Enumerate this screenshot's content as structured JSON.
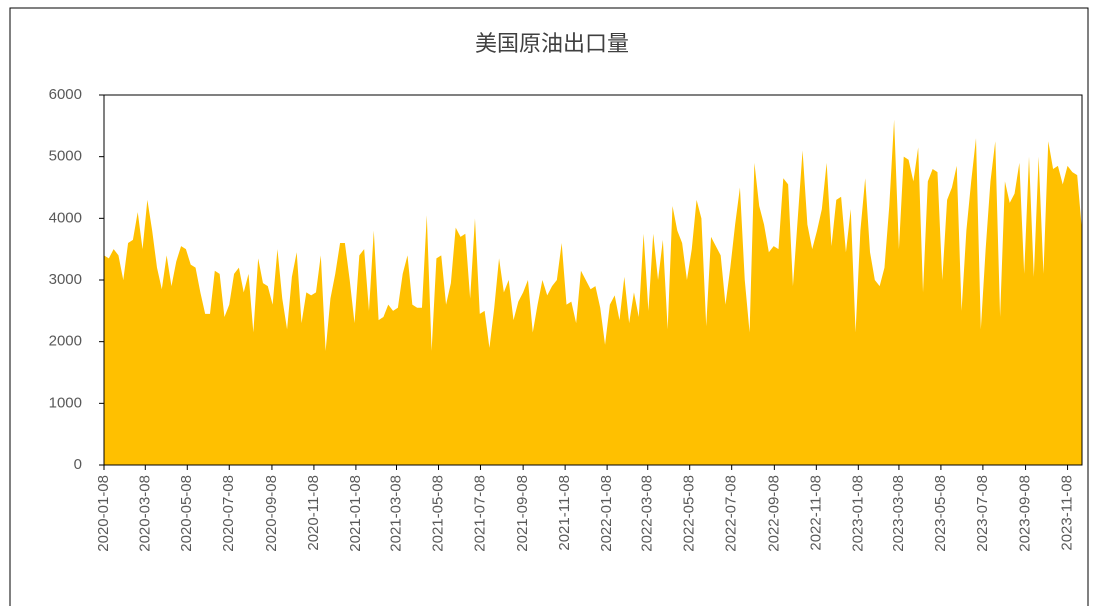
{
  "chart_data": {
    "type": "area",
    "title": "美国原油出口量",
    "color": "#ffc000",
    "ylim": [
      0,
      6000
    ],
    "yticks": [
      0,
      1000,
      2000,
      3000,
      4000,
      5000,
      6000
    ],
    "xticks": [
      "2020-01-08",
      "2020-03-08",
      "2020-05-08",
      "2020-07-08",
      "2020-09-08",
      "2020-11-08",
      "2021-01-08",
      "2021-03-08",
      "2021-05-08",
      "2021-07-08",
      "2021-09-08",
      "2021-11-08",
      "2022-01-08",
      "2022-03-08",
      "2022-05-08",
      "2022-07-08",
      "2022-09-08",
      "2022-11-08",
      "2023-01-08",
      "2023-03-08",
      "2023-05-08",
      "2023-07-08",
      "2023-09-08",
      "2023-11-08"
    ],
    "x": [
      "2020-01-08",
      "2020-01-15",
      "2020-01-22",
      "2020-01-29",
      "2020-02-05",
      "2020-02-12",
      "2020-02-19",
      "2020-02-26",
      "2020-03-04",
      "2020-03-11",
      "2020-03-18",
      "2020-03-25",
      "2020-04-01",
      "2020-04-08",
      "2020-04-15",
      "2020-04-22",
      "2020-04-29",
      "2020-05-06",
      "2020-05-13",
      "2020-05-20",
      "2020-05-27",
      "2020-06-03",
      "2020-06-10",
      "2020-06-17",
      "2020-06-24",
      "2020-07-01",
      "2020-07-08",
      "2020-07-15",
      "2020-07-22",
      "2020-07-29",
      "2020-08-05",
      "2020-08-12",
      "2020-08-19",
      "2020-08-26",
      "2020-09-02",
      "2020-09-09",
      "2020-09-16",
      "2020-09-23",
      "2020-09-30",
      "2020-10-07",
      "2020-10-14",
      "2020-10-21",
      "2020-10-28",
      "2020-11-04",
      "2020-11-11",
      "2020-11-18",
      "2020-11-25",
      "2020-12-02",
      "2020-12-09",
      "2020-12-16",
      "2020-12-23",
      "2020-12-30",
      "2021-01-06",
      "2021-01-13",
      "2021-01-20",
      "2021-01-27",
      "2021-02-03",
      "2021-02-10",
      "2021-02-17",
      "2021-02-24",
      "2021-03-03",
      "2021-03-10",
      "2021-03-17",
      "2021-03-24",
      "2021-03-31",
      "2021-04-07",
      "2021-04-14",
      "2021-04-21",
      "2021-04-28",
      "2021-05-05",
      "2021-05-12",
      "2021-05-19",
      "2021-05-26",
      "2021-06-02",
      "2021-06-09",
      "2021-06-16",
      "2021-06-23",
      "2021-06-30",
      "2021-07-07",
      "2021-07-14",
      "2021-07-21",
      "2021-07-28",
      "2021-08-04",
      "2021-08-11",
      "2021-08-18",
      "2021-08-25",
      "2021-09-01",
      "2021-09-08",
      "2021-09-15",
      "2021-09-22",
      "2021-09-29",
      "2021-10-06",
      "2021-10-13",
      "2021-10-20",
      "2021-10-27",
      "2021-11-03",
      "2021-11-10",
      "2021-11-17",
      "2021-11-24",
      "2021-12-01",
      "2021-12-08",
      "2021-12-15",
      "2021-12-22",
      "2021-12-29",
      "2022-01-05",
      "2022-01-12",
      "2022-01-19",
      "2022-01-26",
      "2022-02-02",
      "2022-02-09",
      "2022-02-16",
      "2022-02-23",
      "2022-03-02",
      "2022-03-09",
      "2022-03-16",
      "2022-03-23",
      "2022-03-30",
      "2022-04-06",
      "2022-04-13",
      "2022-04-20",
      "2022-04-27",
      "2022-05-04",
      "2022-05-11",
      "2022-05-18",
      "2022-05-25",
      "2022-06-01",
      "2022-06-08",
      "2022-06-15",
      "2022-06-22",
      "2022-06-29",
      "2022-07-06",
      "2022-07-13",
      "2022-07-20",
      "2022-07-27",
      "2022-08-03",
      "2022-08-10",
      "2022-08-17",
      "2022-08-24",
      "2022-08-31",
      "2022-09-07",
      "2022-09-14",
      "2022-09-21",
      "2022-09-28",
      "2022-10-05",
      "2022-10-12",
      "2022-10-19",
      "2022-10-26",
      "2022-11-02",
      "2022-11-09",
      "2022-11-16",
      "2022-11-23",
      "2022-11-30",
      "2022-12-07",
      "2022-12-14",
      "2022-12-21",
      "2022-12-28",
      "2023-01-04",
      "2023-01-11",
      "2023-01-18",
      "2023-01-25",
      "2023-02-01",
      "2023-02-08",
      "2023-02-15",
      "2023-02-22",
      "2023-03-01",
      "2023-03-08",
      "2023-03-15",
      "2023-03-22",
      "2023-03-29",
      "2023-04-05",
      "2023-04-12",
      "2023-04-19",
      "2023-04-26",
      "2023-05-03",
      "2023-05-10",
      "2023-05-17",
      "2023-05-24",
      "2023-05-31",
      "2023-06-07",
      "2023-06-14",
      "2023-06-21",
      "2023-06-28",
      "2023-07-05",
      "2023-07-12",
      "2023-07-19",
      "2023-07-26",
      "2023-08-02",
      "2023-08-09",
      "2023-08-16",
      "2023-08-23",
      "2023-08-30",
      "2023-09-06",
      "2023-09-13",
      "2023-09-20",
      "2023-09-27",
      "2023-10-04",
      "2023-10-11",
      "2023-10-18",
      "2023-10-25",
      "2023-11-01",
      "2023-11-08",
      "2023-11-15",
      "2023-11-22",
      "2023-11-29"
    ],
    "values": [
      3400,
      3350,
      3500,
      3400,
      3000,
      3600,
      3650,
      4100,
      3500,
      4300,
      3800,
      3200,
      2850,
      3400,
      2900,
      3300,
      3550,
      3500,
      3250,
      3200,
      2800,
      2450,
      2450,
      3150,
      3100,
      2400,
      2600,
      3100,
      3200,
      2800,
      3100,
      2150,
      3350,
      2950,
      2900,
      2600,
      3500,
      2700,
      2200,
      3050,
      3450,
      2300,
      2800,
      2750,
      2800,
      3400,
      1850,
      2700,
      3100,
      3600,
      3600,
      3000,
      2300,
      3400,
      3500,
      2500,
      3800,
      2350,
      2400,
      2600,
      2500,
      2550,
      3100,
      3400,
      2600,
      2550,
      2550,
      4050,
      1850,
      3350,
      3400,
      2600,
      2950,
      3850,
      3700,
      3750,
      2700,
      4000,
      2450,
      2500,
      1900,
      2550,
      3350,
      2800,
      3000,
      2350,
      2650,
      2800,
      3000,
      2150,
      2600,
      3000,
      2750,
      2900,
      3000,
      3600,
      2600,
      2650,
      2300,
      3150,
      3000,
      2850,
      2900,
      2550,
      1950,
      2600,
      2750,
      2350,
      3050,
      2300,
      2800,
      2400,
      3750,
      2500,
      3750,
      3000,
      3650,
      2200,
      4200,
      3800,
      3600,
      3000,
      3500,
      4300,
      4000,
      2250,
      3700,
      3550,
      3400,
      2600,
      3200,
      3900,
      4500,
      3000,
      2150,
      4900,
      4200,
      3900,
      3450,
      3550,
      3500,
      4650,
      4550,
      2900,
      4000,
      5100,
      3900,
      3500,
      3800,
      4150,
      4900,
      3550,
      4300,
      4350,
      3450,
      4150,
      2150,
      3800,
      4650,
      3450,
      3000,
      2900,
      3200,
      4200,
      5600,
      3500,
      5000,
      4950,
      4600,
      5150,
      2800,
      4600,
      4800,
      4750,
      3000,
      4300,
      4500,
      4850,
      2500,
      3800,
      4600,
      5300,
      2200,
      3500,
      4600,
      5250,
      2400,
      4600,
      4250,
      4400,
      4900,
      3100,
      5000,
      3050,
      5000,
      3100,
      5250,
      4800,
      4850,
      4550,
      4850,
      4750,
      4700,
      3800
    ]
  }
}
